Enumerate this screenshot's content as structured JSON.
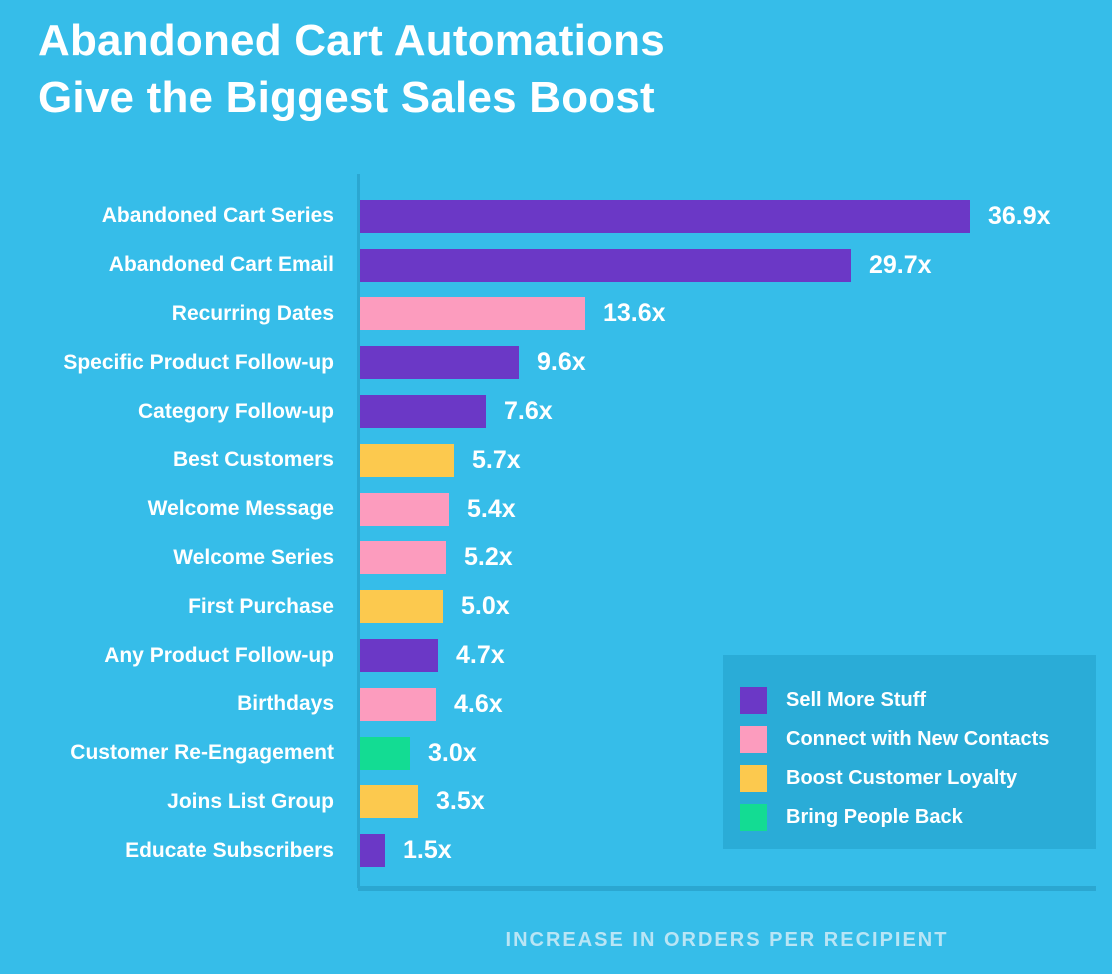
{
  "title": {
    "line1": "Abandoned Cart Automations",
    "line2": "Give the Biggest Sales Boost"
  },
  "colors": {
    "background": "#36BDE9",
    "axis": "#2BA7D1",
    "legend_background": "#2AACD7",
    "label_text": "#FFFFFF",
    "axis_label_text": "#B9E5F5",
    "series": {
      "sell": "#6B38C6",
      "connect": "#FC9CBE",
      "boost": "#FCC94E",
      "bring": "#13DC93"
    }
  },
  "chart_data": {
    "type": "bar",
    "orientation": "horizontal",
    "title": "Abandoned Cart Automations Give the Biggest Sales Boost",
    "xlabel": "INCREASE IN ORDERS PER RECIPIENT",
    "ylabel": "",
    "xlim": [
      0,
      40
    ],
    "grid": false,
    "value_suffix": "x",
    "legend_position": "bottom-right",
    "categories": [
      "Abandoned Cart Series",
      "Abandoned Cart Email",
      "Recurring Dates",
      "Specific Product Follow-up",
      "Category Follow-up",
      "Best Customers",
      "Welcome Message",
      "Welcome Series",
      "First Purchase",
      "Any Product Follow-up",
      "Birthdays",
      "Customer Re-Engagement",
      "Joins List Group",
      "Educate Subscribers"
    ],
    "values": [
      36.9,
      29.7,
      13.6,
      9.6,
      7.6,
      5.7,
      5.4,
      5.2,
      5.0,
      4.7,
      4.6,
      3.0,
      3.5,
      1.5
    ],
    "rows": [
      {
        "label": "Abandoned Cart Series",
        "value": 36.9,
        "display": "36.9x",
        "series": "sell"
      },
      {
        "label": "Abandoned Cart Email",
        "value": 29.7,
        "display": "29.7x",
        "series": "sell"
      },
      {
        "label": "Recurring Dates",
        "value": 13.6,
        "display": "13.6x",
        "series": "connect"
      },
      {
        "label": "Specific Product Follow-up",
        "value": 9.6,
        "display": "9.6x",
        "series": "sell"
      },
      {
        "label": "Category Follow-up",
        "value": 7.6,
        "display": "7.6x",
        "series": "sell"
      },
      {
        "label": "Best Customers",
        "value": 5.7,
        "display": "5.7x",
        "series": "boost"
      },
      {
        "label": "Welcome Message",
        "value": 5.4,
        "display": "5.4x",
        "series": "connect"
      },
      {
        "label": "Welcome Series",
        "value": 5.2,
        "display": "5.2x",
        "series": "connect"
      },
      {
        "label": "First Purchase",
        "value": 5.0,
        "display": "5.0x",
        "series": "boost"
      },
      {
        "label": "Any Product Follow-up",
        "value": 4.7,
        "display": "4.7x",
        "series": "sell"
      },
      {
        "label": "Birthdays",
        "value": 4.6,
        "display": "4.6x",
        "series": "connect"
      },
      {
        "label": "Customer Re-Engagement",
        "value": 3.0,
        "display": "3.0x",
        "series": "bring"
      },
      {
        "label": "Joins List Group",
        "value": 3.5,
        "display": "3.5x",
        "series": "boost"
      },
      {
        "label": "Educate Subscribers",
        "value": 1.5,
        "display": "1.5x",
        "series": "sell"
      }
    ],
    "legend": [
      {
        "id": "sell",
        "label": "Sell More Stuff"
      },
      {
        "id": "connect",
        "label": "Connect with New Contacts"
      },
      {
        "id": "boost",
        "label": "Boost Customer Loyalty"
      },
      {
        "id": "bring",
        "label": "Bring People Back"
      }
    ]
  }
}
